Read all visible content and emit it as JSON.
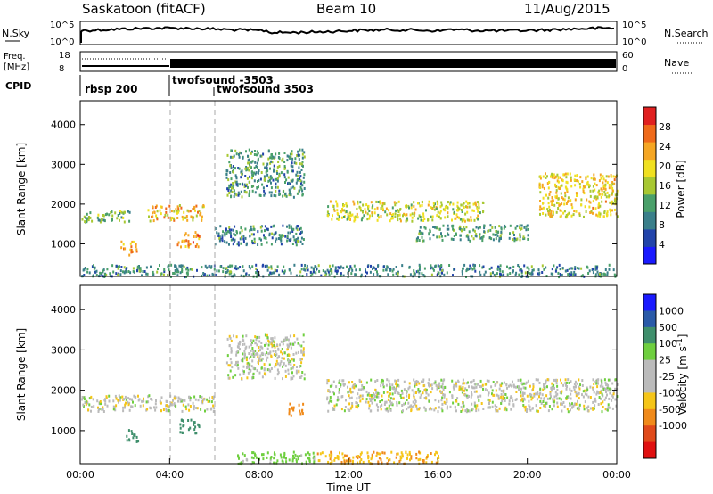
{
  "header": {
    "radar": "Saskatoon (fitACF)",
    "beam": "Beam 10",
    "date": "11/Aug/2015"
  },
  "top_panels": {
    "nsky": {
      "label": "N.Sky",
      "ticks": [
        "10^5",
        "10^0"
      ],
      "right_ticks": [
        "10^5",
        "10^0"
      ],
      "legend": "N.Search"
    },
    "freq": {
      "label_line1": "Freq.",
      "label_line2": "[MHz]",
      "ticks": [
        "18",
        "8"
      ],
      "right_ticks": [
        "60",
        "0"
      ],
      "legend": "Nave"
    },
    "cpid": {
      "label": "CPID",
      "programs": [
        {
          "name": "rbsp 200",
          "start_hour": 0.0
        },
        {
          "name": "twofsound -3503",
          "start_hour": 4.0
        },
        {
          "name": "twofsound 3503",
          "start_hour": 6.0
        }
      ]
    }
  },
  "colors": {
    "power_scale": [
      "#1a1aff",
      "#2244aa",
      "#3a7f8a",
      "#4aa06a",
      "#a8c832",
      "#f0e020",
      "#f5a623",
      "#ef6a1a",
      "#e02020"
    ],
    "velocity_scale": [
      "#1a1aff",
      "#2a5aa8",
      "#3f8f6c",
      "#6fcf3f",
      "#bbbbbb",
      "#bbbbbb",
      "#f5c518",
      "#f08a1a",
      "#e04a1a",
      "#e01010"
    ]
  },
  "chart_data": [
    {
      "type": "heatmap",
      "name": "power",
      "xlabel": "Time UT",
      "ylabel": "Slant Range [km]",
      "xlim": [
        0,
        24
      ],
      "ylim": [
        180,
        4600
      ],
      "x_ticks": [
        "00:00",
        "04:00",
        "08:00",
        "12:00",
        "16:00",
        "20:00",
        "00:00"
      ],
      "y_ticks": [
        1000,
        2000,
        3000,
        4000
      ],
      "colorbar": {
        "label": "Power [dB]",
        "range": [
          0,
          32
        ],
        "ticks": [
          4,
          8,
          12,
          16,
          20,
          24,
          28
        ]
      },
      "regions": [
        {
          "t0": 0.0,
          "t1": 24.0,
          "r0": 200,
          "r1": 500,
          "value": 10
        },
        {
          "t0": 0.0,
          "t1": 2.2,
          "r0": 1550,
          "r1": 1850,
          "value": 14
        },
        {
          "t0": 1.8,
          "t1": 2.5,
          "r0": 750,
          "r1": 1100,
          "value": 23
        },
        {
          "t0": 3.0,
          "t1": 5.5,
          "r0": 1600,
          "r1": 2000,
          "value": 21
        },
        {
          "t0": 4.3,
          "t1": 5.3,
          "r0": 950,
          "r1": 1350,
          "value": 24
        },
        {
          "t0": 6.5,
          "t1": 10.0,
          "r0": 2200,
          "r1": 3400,
          "value": 11
        },
        {
          "t0": 6.0,
          "t1": 10.0,
          "r0": 1000,
          "r1": 1500,
          "value": 10
        },
        {
          "t0": 11.0,
          "t1": 18.0,
          "r0": 1600,
          "r1": 2100,
          "value": 18
        },
        {
          "t0": 15.0,
          "t1": 20.0,
          "r0": 1100,
          "r1": 1500,
          "value": 12
        },
        {
          "t0": 20.5,
          "t1": 24.0,
          "r0": 1700,
          "r1": 2800,
          "value": 20
        }
      ]
    },
    {
      "type": "heatmap",
      "name": "velocity",
      "xlabel": "Time UT",
      "ylabel": "Slant Range [km]",
      "xlim": [
        0,
        24
      ],
      "ylim": [
        180,
        4600
      ],
      "x_ticks": [
        "00:00",
        "04:00",
        "08:00",
        "12:00",
        "16:00",
        "20:00",
        "00:00"
      ],
      "y_ticks": [
        1000,
        2000,
        3000,
        4000
      ],
      "colorbar": {
        "label": "Velocity [m s^-1]",
        "ticks": [
          "1000",
          "500",
          "100",
          "25",
          "-25",
          "-100",
          "-500",
          "-1000"
        ]
      },
      "regions": [
        {
          "t0": 0.0,
          "t1": 6.0,
          "r0": 1500,
          "r1": 1900,
          "value": 0
        },
        {
          "t0": 6.5,
          "t1": 10.0,
          "r0": 2300,
          "r1": 3400,
          "value": 0
        },
        {
          "t0": 7.0,
          "t1": 10.5,
          "r0": 200,
          "r1": 500,
          "value": 60
        },
        {
          "t0": 10.5,
          "t1": 16.0,
          "r0": 200,
          "r1": 500,
          "value": -90
        },
        {
          "t0": 2.0,
          "t1": 2.6,
          "r0": 750,
          "r1": 1050,
          "value": 400
        },
        {
          "t0": 4.4,
          "t1": 5.3,
          "r0": 950,
          "r1": 1300,
          "value": 300
        },
        {
          "t0": 9.3,
          "t1": 10.0,
          "r0": 1400,
          "r1": 1700,
          "value": -300
        },
        {
          "t0": 11.0,
          "t1": 24.0,
          "r0": 1500,
          "r1": 2300,
          "value": 0
        }
      ]
    }
  ]
}
